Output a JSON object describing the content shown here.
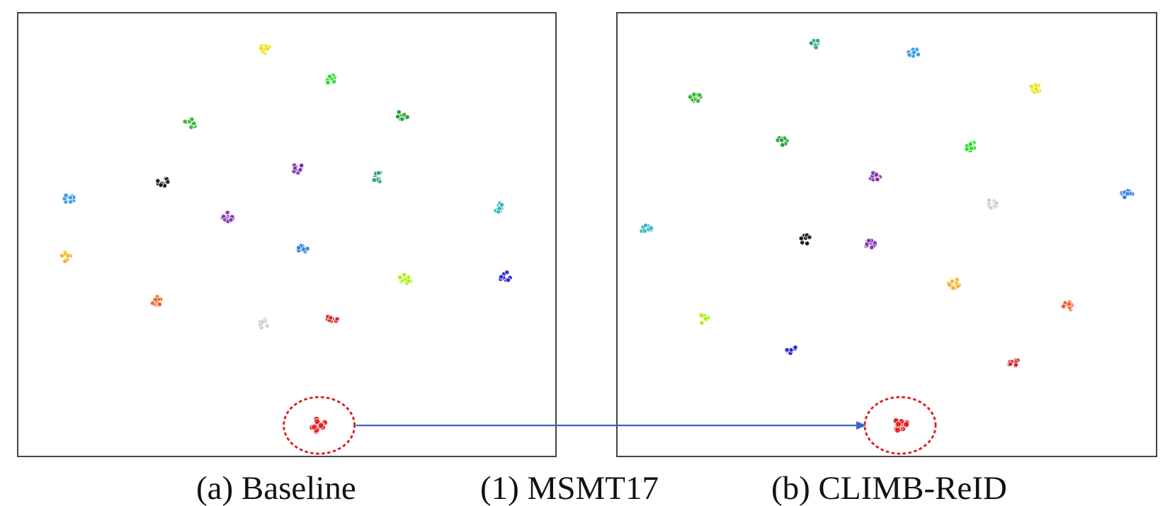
{
  "figure": {
    "caption_left": "(a) Baseline",
    "caption_center": "(1) MSMT17",
    "caption_right": "(b) CLIMB-ReID"
  },
  "chart_data": [
    {
      "type": "scatter",
      "title": "(a) Baseline",
      "xlabel": "",
      "ylabel": "",
      "grid": false,
      "xlim": [
        0,
        100
      ],
      "ylim": [
        0,
        100
      ],
      "clusters": [
        {
          "color": "#e8e000",
          "x": 46,
          "y": 92
        },
        {
          "color": "#22dd22",
          "x": 58,
          "y": 85
        },
        {
          "color": "#1f9e2e",
          "x": 71.5,
          "y": 77
        },
        {
          "color": "#2ab52a",
          "x": 32,
          "y": 75
        },
        {
          "color": "#7a2bb0",
          "x": 52,
          "y": 65
        },
        {
          "color": "#2a9d74",
          "x": 67,
          "y": 63
        },
        {
          "color": "#111111",
          "x": 27,
          "y": 62
        },
        {
          "color": "#2b9be0",
          "x": 9.5,
          "y": 58
        },
        {
          "color": "#7a2bb0",
          "x": 39,
          "y": 54
        },
        {
          "color": "#26b2b8",
          "x": 89.5,
          "y": 56
        },
        {
          "color": "#2a78e0",
          "x": 53,
          "y": 47
        },
        {
          "color": "#f2b01c",
          "x": 9,
          "y": 45
        },
        {
          "color": "#a8f000",
          "x": 72,
          "y": 40
        },
        {
          "color": "#1f1fd0",
          "x": 90.5,
          "y": 40.5
        },
        {
          "color": "#f05a18",
          "x": 26,
          "y": 35
        },
        {
          "color": "#cccccc",
          "x": 45.5,
          "y": 30
        },
        {
          "color": "#d42020",
          "x": 58.5,
          "y": 31
        },
        {
          "color": "#e81c1c",
          "x": 56,
          "y": 7,
          "highlighted": true
        }
      ]
    },
    {
      "type": "scatter",
      "title": "(b) CLIMB-ReID",
      "xlabel": "",
      "ylabel": "",
      "grid": false,
      "xlim": [
        0,
        100
      ],
      "ylim": [
        0,
        100
      ],
      "clusters": [
        {
          "color": "#2a9d74",
          "x": 36.5,
          "y": 93
        },
        {
          "color": "#2b9be0",
          "x": 55,
          "y": 91
        },
        {
          "color": "#e8e000",
          "x": 77.5,
          "y": 83
        },
        {
          "color": "#2ab52a",
          "x": 14.5,
          "y": 81
        },
        {
          "color": "#1f9e2e",
          "x": 30.5,
          "y": 71
        },
        {
          "color": "#22dd22",
          "x": 65.5,
          "y": 70
        },
        {
          "color": "#7a2bb0",
          "x": 48,
          "y": 63
        },
        {
          "color": "#2a78e0",
          "x": 94.5,
          "y": 59
        },
        {
          "color": "#cccccc",
          "x": 69.5,
          "y": 57
        },
        {
          "color": "#26b2b8",
          "x": 5.5,
          "y": 51
        },
        {
          "color": "#111111",
          "x": 35,
          "y": 49
        },
        {
          "color": "#7a2bb0",
          "x": 47,
          "y": 48
        },
        {
          "color": "#f2b01c",
          "x": 62.5,
          "y": 39
        },
        {
          "color": "#f05a18",
          "x": 83.5,
          "y": 34
        },
        {
          "color": "#a8f000",
          "x": 16,
          "y": 31
        },
        {
          "color": "#1f1fd0",
          "x": 32.5,
          "y": 24
        },
        {
          "color": "#d42020",
          "x": 73.5,
          "y": 21
        },
        {
          "color": "#e81c1c",
          "x": 52.5,
          "y": 7,
          "highlighted": true
        }
      ]
    }
  ],
  "arrow": {
    "color": "#3a63c8",
    "from_panel": 0,
    "to_panel": 1,
    "cluster": "highlighted"
  }
}
